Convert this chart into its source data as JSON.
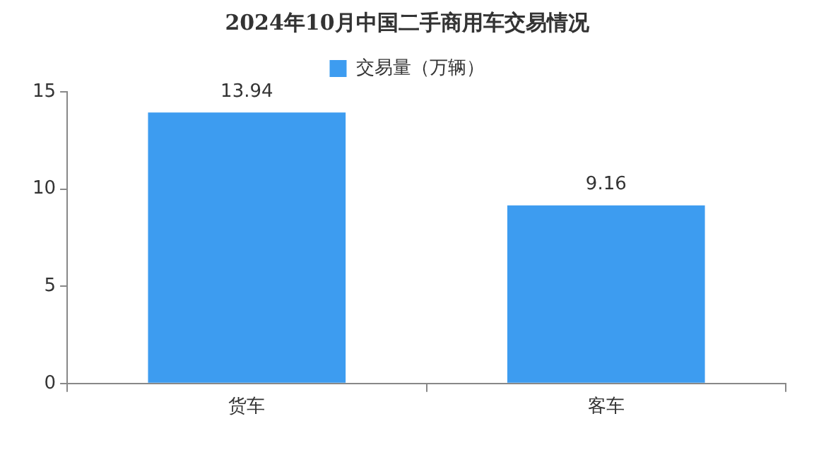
{
  "chart_data": {
    "type": "bar",
    "title": "2024年10月中国二手商用车交易情况",
    "categories": [
      "货车",
      "客车"
    ],
    "series": [
      {
        "name": "交易量（万辆）",
        "color": "#3d9cf0",
        "values": [
          13.94,
          9.16
        ]
      }
    ],
    "ylim": [
      0,
      15
    ],
    "yticks": [
      0,
      5,
      10,
      15
    ],
    "grid": false,
    "legend": "top",
    "data_labels": true
  }
}
